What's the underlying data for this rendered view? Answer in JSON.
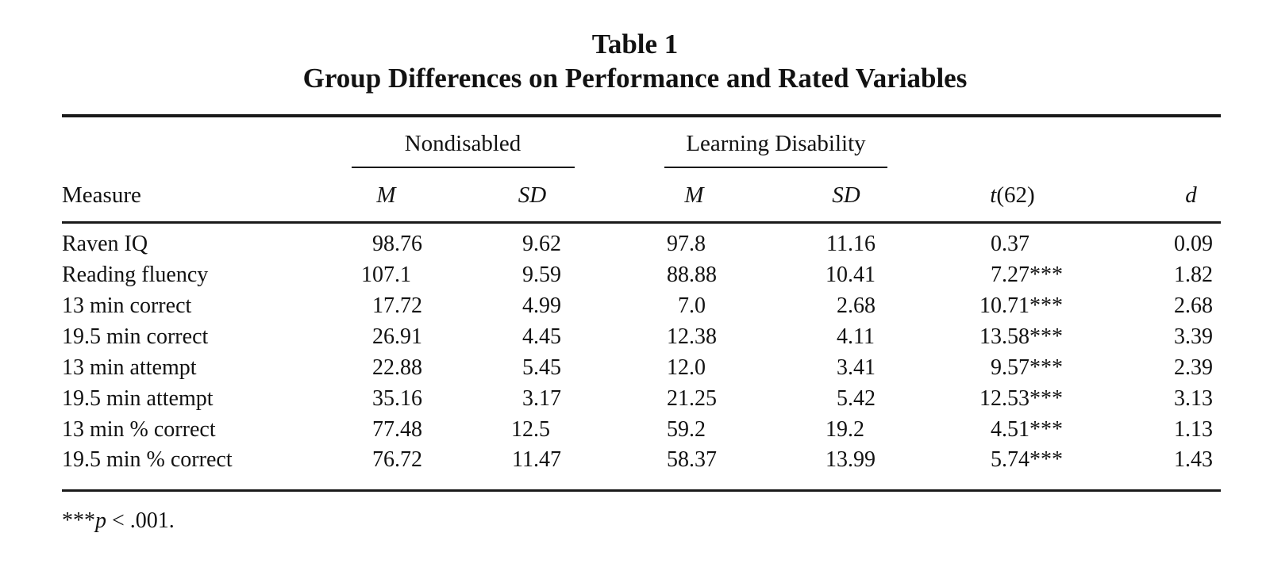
{
  "document": {
    "table_label": "Table 1",
    "table_title": "Group Differences on Performance and Rated Variables"
  },
  "table": {
    "spanners": {
      "group1": "Nondisabled",
      "group2": "Learning Disability"
    },
    "headers": {
      "measure": "Measure",
      "nd_m": "M",
      "nd_sd": "SD",
      "ld_m": "M",
      "ld_sd": "SD",
      "t_stat_italic": "t",
      "t_stat_df": "(62)",
      "effect_size": "d"
    },
    "rows": [
      {
        "measure": "Raven IQ",
        "nd_m": "98.76",
        "nd_sd": "9.62",
        "ld_m": "97.8",
        "ld_sd": "11.16",
        "t": "0.37",
        "d": "0.09"
      },
      {
        "measure": "Reading fluency",
        "nd_m": "107.1",
        "nd_sd": "9.59",
        "ld_m": "88.88",
        "ld_sd": "10.41",
        "t": "7.27***",
        "d": "1.82"
      },
      {
        "measure": "13 min correct",
        "nd_m": "17.72",
        "nd_sd": "4.99",
        "ld_m": "7.0",
        "ld_sd": "2.68",
        "t": "10.71***",
        "d": "2.68"
      },
      {
        "measure": "19.5 min correct",
        "nd_m": "26.91",
        "nd_sd": "4.45",
        "ld_m": "12.38",
        "ld_sd": "4.11",
        "t": "13.58***",
        "d": "3.39"
      },
      {
        "measure": "13 min attempt",
        "nd_m": "22.88",
        "nd_sd": "5.45",
        "ld_m": "12.0",
        "ld_sd": "3.41",
        "t": "9.57***",
        "d": "2.39"
      },
      {
        "measure": "19.5 min attempt",
        "nd_m": "35.16",
        "nd_sd": "3.17",
        "ld_m": "21.25",
        "ld_sd": "5.42",
        "t": "12.53***",
        "d": "3.13"
      },
      {
        "measure": "13 min % correct",
        "nd_m": "77.48",
        "nd_sd": "12.5",
        "ld_m": "59.2",
        "ld_sd": "19.2",
        "t": "4.51***",
        "d": "1.13"
      },
      {
        "measure": "19.5 min % correct",
        "nd_m": "76.72",
        "nd_sd": "11.47",
        "ld_m": "58.37",
        "ld_sd": "13.99",
        "t": "5.74***",
        "d": "1.43"
      }
    ],
    "footnote": {
      "stars": "***",
      "p_symbol": "p",
      "text": " < .001."
    }
  },
  "colors": {
    "text": "#121212",
    "rule": "#1a1a1a",
    "background": "#ffffff"
  }
}
